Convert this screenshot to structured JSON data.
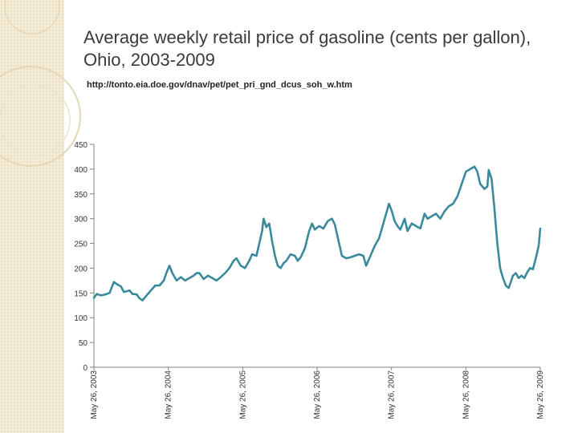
{
  "header": {
    "title": "Average weekly retail price of gasoline (cents per gallon), Ohio, 2003-2009",
    "source": "http://tonto.eia.doe.gov/dnav/pet/pet_pri_gnd_dcus_soh_w.htm"
  },
  "colors": {
    "series": "#3a8a9c",
    "axis": "#808080",
    "side_band": "#f3ecd6"
  },
  "chart_data": {
    "type": "line",
    "title": "",
    "xlabel": "",
    "ylabel": "",
    "ylim": [
      0,
      450
    ],
    "yticks": [
      0,
      50,
      100,
      150,
      200,
      250,
      300,
      350,
      400,
      450
    ],
    "xlim": [
      "2003-05-26",
      "2009-05-26"
    ],
    "xtick_labels": [
      "May 26, 2003",
      "May 26, 2004",
      "May 26, 2005",
      "May 26, 2006",
      "May 26, 2007",
      "May 26, 2008",
      "May 26, 2009"
    ],
    "grid": false,
    "legend": "none",
    "series": [
      {
        "name": "",
        "points": [
          [
            "2003-05-26",
            140
          ],
          [
            "2003-06-09",
            148
          ],
          [
            "2003-06-30",
            145
          ],
          [
            "2003-07-21",
            147
          ],
          [
            "2003-08-11",
            150
          ],
          [
            "2003-08-25",
            165
          ],
          [
            "2003-09-01",
            172
          ],
          [
            "2003-09-15",
            168
          ],
          [
            "2003-10-06",
            163
          ],
          [
            "2003-10-20",
            152
          ],
          [
            "2003-11-17",
            155
          ],
          [
            "2003-12-01",
            148
          ],
          [
            "2003-12-22",
            147
          ],
          [
            "2004-01-05",
            139
          ],
          [
            "2004-01-19",
            135
          ],
          [
            "2004-02-09",
            145
          ],
          [
            "2004-03-01",
            155
          ],
          [
            "2004-03-22",
            165
          ],
          [
            "2004-04-12",
            165
          ],
          [
            "2004-05-03",
            175
          ],
          [
            "2004-05-17",
            192
          ],
          [
            "2004-05-31",
            205
          ],
          [
            "2004-06-14",
            190
          ],
          [
            "2004-07-05",
            175
          ],
          [
            "2004-07-26",
            182
          ],
          [
            "2004-08-16",
            175
          ],
          [
            "2004-09-06",
            180
          ],
          [
            "2004-09-27",
            185
          ],
          [
            "2004-10-11",
            190
          ],
          [
            "2004-10-25",
            190
          ],
          [
            "2004-11-15",
            178
          ],
          [
            "2004-12-06",
            185
          ],
          [
            "2004-12-27",
            180
          ],
          [
            "2005-01-17",
            175
          ],
          [
            "2005-02-07",
            182
          ],
          [
            "2005-02-28",
            190
          ],
          [
            "2005-03-21",
            200
          ],
          [
            "2005-04-11",
            215
          ],
          [
            "2005-04-25",
            220
          ],
          [
            "2005-05-16",
            205
          ],
          [
            "2005-06-06",
            200
          ],
          [
            "2005-06-27",
            215
          ],
          [
            "2005-07-11",
            228
          ],
          [
            "2005-08-01",
            225
          ],
          [
            "2005-08-15",
            250
          ],
          [
            "2005-08-29",
            275
          ],
          [
            "2005-09-05",
            300
          ],
          [
            "2005-09-19",
            283
          ],
          [
            "2005-10-03",
            290
          ],
          [
            "2005-10-17",
            255
          ],
          [
            "2005-10-31",
            225
          ],
          [
            "2005-11-14",
            205
          ],
          [
            "2005-11-28",
            200
          ],
          [
            "2005-12-12",
            210
          ],
          [
            "2005-12-26",
            215
          ],
          [
            "2006-01-16",
            228
          ],
          [
            "2006-02-06",
            225
          ],
          [
            "2006-02-20",
            215
          ],
          [
            "2006-03-06",
            222
          ],
          [
            "2006-03-27",
            240
          ],
          [
            "2006-04-17",
            275
          ],
          [
            "2006-05-01",
            290
          ],
          [
            "2006-05-15",
            278
          ],
          [
            "2006-06-05",
            285
          ],
          [
            "2006-06-26",
            280
          ],
          [
            "2006-07-17",
            295
          ],
          [
            "2006-08-07",
            300
          ],
          [
            "2006-08-21",
            288
          ],
          [
            "2006-09-11",
            250
          ],
          [
            "2006-09-25",
            225
          ],
          [
            "2006-10-16",
            220
          ],
          [
            "2006-11-06",
            222
          ],
          [
            "2006-11-27",
            225
          ],
          [
            "2006-12-18",
            228
          ],
          [
            "2007-01-08",
            225
          ],
          [
            "2007-01-22",
            205
          ],
          [
            "2007-02-12",
            225
          ],
          [
            "2007-03-05",
            245
          ],
          [
            "2007-03-26",
            260
          ],
          [
            "2007-04-09",
            280
          ],
          [
            "2007-04-30",
            310
          ],
          [
            "2007-05-14",
            330
          ],
          [
            "2007-05-28",
            315
          ],
          [
            "2007-06-11",
            295
          ],
          [
            "2007-06-25",
            285
          ],
          [
            "2007-07-09",
            278
          ],
          [
            "2007-07-30",
            300
          ],
          [
            "2007-08-13",
            275
          ],
          [
            "2007-09-03",
            290
          ],
          [
            "2007-09-24",
            285
          ],
          [
            "2007-10-15",
            280
          ],
          [
            "2007-11-05",
            310
          ],
          [
            "2007-11-19",
            300
          ],
          [
            "2007-12-10",
            305
          ],
          [
            "2007-12-31",
            310
          ],
          [
            "2008-01-21",
            300
          ],
          [
            "2008-02-11",
            315
          ],
          [
            "2008-03-03",
            325
          ],
          [
            "2008-03-24",
            330
          ],
          [
            "2008-04-14",
            345
          ],
          [
            "2008-05-05",
            370
          ],
          [
            "2008-05-26",
            395
          ],
          [
            "2008-06-16",
            400
          ],
          [
            "2008-07-07",
            405
          ],
          [
            "2008-07-21",
            395
          ],
          [
            "2008-08-04",
            370
          ],
          [
            "2008-08-25",
            360
          ],
          [
            "2008-09-08",
            365
          ],
          [
            "2008-09-15",
            398
          ],
          [
            "2008-09-29",
            380
          ],
          [
            "2008-10-13",
            320
          ],
          [
            "2008-10-27",
            250
          ],
          [
            "2008-11-10",
            200
          ],
          [
            "2008-11-24",
            180
          ],
          [
            "2008-12-08",
            165
          ],
          [
            "2008-12-22",
            160
          ],
          [
            "2009-01-12",
            185
          ],
          [
            "2009-01-26",
            190
          ],
          [
            "2009-02-09",
            180
          ],
          [
            "2009-02-23",
            185
          ],
          [
            "2009-03-09",
            180
          ],
          [
            "2009-03-23",
            192
          ],
          [
            "2009-04-06",
            200
          ],
          [
            "2009-04-20",
            198
          ],
          [
            "2009-05-04",
            220
          ],
          [
            "2009-05-18",
            245
          ],
          [
            "2009-05-26",
            280
          ]
        ]
      }
    ]
  }
}
